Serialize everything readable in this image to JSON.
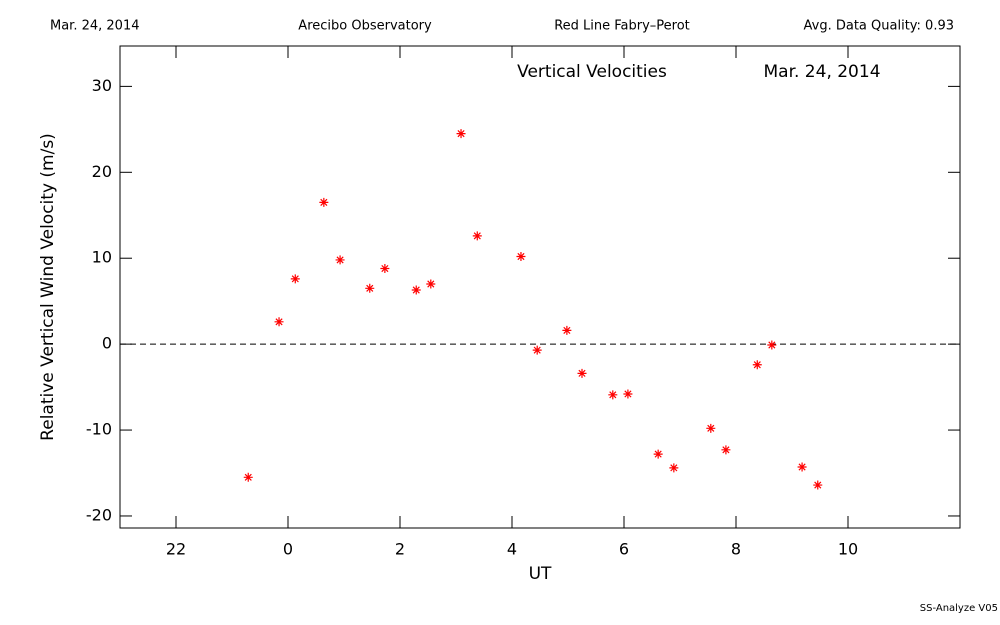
{
  "header": {
    "date": "Mar. 24, 2014",
    "site": "Arecibo Observatory",
    "instrument": "Red Line Fabry–Perot",
    "quality": "Avg. Data Quality: 0.93"
  },
  "footer": "SS-Analyze V05",
  "chart_data": {
    "type": "scatter",
    "title": "Vertical Velocities",
    "subtitle": "Mar. 24, 2014",
    "x_label": "UT",
    "y_label": "Relative Vertical Wind Velocity (m/s)",
    "xlim": [
      -3,
      12
    ],
    "ylim": [
      -21.4,
      34.7
    ],
    "xticks": [
      {
        "value": -2,
        "label": "22"
      },
      0,
      2,
      4,
      6,
      8,
      10
    ],
    "yticks": [
      -20,
      -10,
      0,
      10,
      20,
      30
    ],
    "reference_line": 0,
    "series": [
      {
        "color": "#ff0000",
        "x": [
          -0.71,
          -0.16,
          0.13,
          0.64,
          0.93,
          1.46,
          1.73,
          2.29,
          2.55,
          3.09,
          3.38,
          4.16,
          4.45,
          4.98,
          5.25,
          5.8,
          6.07,
          6.61,
          6.89,
          7.55,
          7.82,
          8.38,
          8.64,
          9.18,
          9.46
        ],
        "values": [
          -15.5,
          2.6,
          7.6,
          16.5,
          9.8,
          6.5,
          8.8,
          6.3,
          7.0,
          24.5,
          12.6,
          10.2,
          -0.7,
          1.6,
          -3.4,
          -5.9,
          -5.8,
          -12.8,
          -14.4,
          -9.8,
          -12.3,
          -2.4,
          -0.1,
          -14.3,
          -16.4
        ]
      }
    ]
  }
}
